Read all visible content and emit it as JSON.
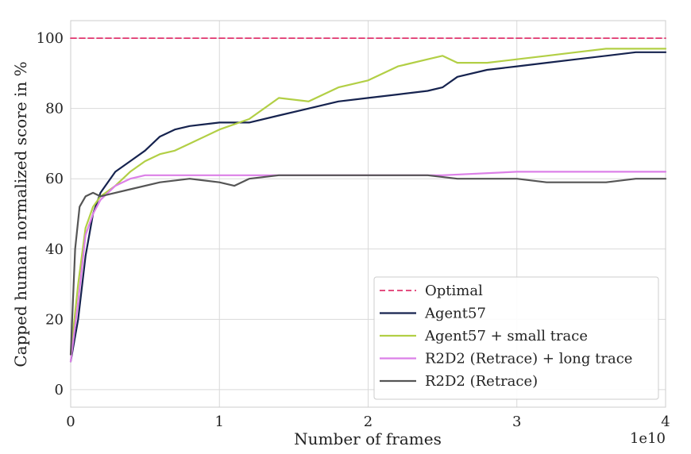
{
  "chart_data": {
    "type": "line",
    "xlabel": "Number of  frames",
    "ylabel": "Capped human normalized score in %",
    "x_offset_text": "1e10",
    "xlim": [
      0,
      4
    ],
    "ylim": [
      -5,
      105
    ],
    "x_ticks": [
      0,
      1,
      2,
      3,
      4
    ],
    "x_tick_labels": [
      "0",
      "1",
      "2",
      "3",
      "4"
    ],
    "y_ticks": [
      0,
      20,
      40,
      60,
      80,
      100
    ],
    "y_tick_labels": [
      "0",
      "20",
      "40",
      "60",
      "80",
      "100"
    ],
    "grid": true,
    "legend_position": "lower-right",
    "series": [
      {
        "name": "Optimal",
        "color": "#e0356e",
        "dashed": true,
        "x": [
          0,
          4
        ],
        "y": [
          100,
          100
        ]
      },
      {
        "name": "Agent57",
        "color": "#16234f",
        "dashed": false,
        "x": [
          0,
          0.05,
          0.1,
          0.15,
          0.2,
          0.3,
          0.4,
          0.5,
          0.6,
          0.7,
          0.8,
          1.0,
          1.2,
          1.4,
          1.6,
          1.8,
          2.0,
          2.2,
          2.4,
          2.5,
          2.6,
          2.8,
          3.0,
          3.2,
          3.4,
          3.6,
          3.8,
          4.0
        ],
        "y": [
          8,
          20,
          38,
          50,
          56,
          62,
          65,
          68,
          72,
          74,
          75,
          76,
          76,
          78,
          80,
          82,
          83,
          84,
          85,
          86,
          89,
          91,
          92,
          93,
          94,
          95,
          96,
          96
        ]
      },
      {
        "name": "Agent57 + small trace",
        "color": "#b2cf45",
        "dashed": false,
        "x": [
          0,
          0.05,
          0.1,
          0.15,
          0.2,
          0.3,
          0.4,
          0.5,
          0.6,
          0.7,
          0.8,
          1.0,
          1.2,
          1.4,
          1.6,
          1.8,
          2.0,
          2.2,
          2.4,
          2.5,
          2.6,
          2.8,
          3.0,
          3.2,
          3.4,
          3.6,
          3.8,
          4.0
        ],
        "y": [
          10,
          30,
          46,
          52,
          55,
          58,
          62,
          65,
          67,
          68,
          70,
          74,
          77,
          83,
          82,
          86,
          88,
          92,
          94,
          95,
          93,
          93,
          94,
          95,
          96,
          97,
          97,
          97
        ]
      },
      {
        "name": "R2D2 (Retrace) + long trace",
        "color": "#dc80e8",
        "dashed": false,
        "x": [
          0,
          0.05,
          0.1,
          0.15,
          0.2,
          0.3,
          0.4,
          0.5,
          0.6,
          0.8,
          1.0,
          1.5,
          2.0,
          2.5,
          3.0,
          3.5,
          4.0
        ],
        "y": [
          8,
          25,
          44,
          50,
          54,
          58,
          60,
          61,
          61,
          61,
          61,
          61,
          61,
          61,
          62,
          62,
          62
        ]
      },
      {
        "name": "R2D2 (Retrace)",
        "color": "#555555",
        "dashed": false,
        "x": [
          0,
          0.03,
          0.06,
          0.1,
          0.15,
          0.2,
          0.3,
          0.4,
          0.6,
          0.8,
          1.0,
          1.1,
          1.2,
          1.4,
          1.6,
          1.8,
          2.0,
          2.2,
          2.4,
          2.6,
          2.8,
          3.0,
          3.2,
          3.4,
          3.6,
          3.8,
          4.0
        ],
        "y": [
          10,
          40,
          52,
          55,
          56,
          55,
          56,
          57,
          59,
          60,
          59,
          58,
          60,
          61,
          61,
          61,
          61,
          61,
          61,
          60,
          60,
          60,
          59,
          59,
          59,
          60,
          60
        ]
      }
    ]
  }
}
